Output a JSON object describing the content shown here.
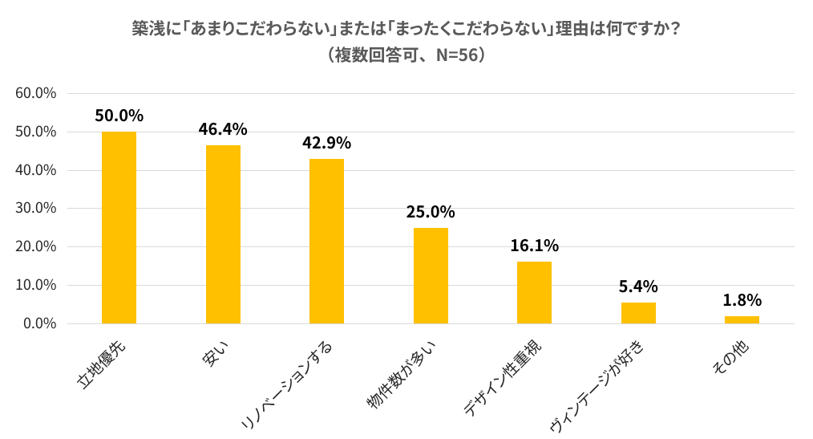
{
  "chart_data": {
    "type": "bar",
    "title": "築浅に「あまりこだわらない」または「まったくこだわらない」理由は何ですか？",
    "subtitle": "（複数回答可、N=56）",
    "categories": [
      "立地優先",
      "安い",
      "リノベーションする",
      "物件数が多い",
      "デザイン性重視",
      "ヴィンテージが好き",
      "その他"
    ],
    "values": [
      50.0,
      46.4,
      42.9,
      25.0,
      16.1,
      5.4,
      1.8
    ],
    "value_labels": [
      "50.0%",
      "46.4%",
      "42.9%",
      "25.0%",
      "16.1%",
      "5.4%",
      "1.8%"
    ],
    "y_axis": {
      "tick_labels": [
        "0.0%",
        "10.0%",
        "20.0%",
        "30.0%",
        "40.0%",
        "50.0%",
        "60.0%"
      ],
      "tick_values": [
        0,
        10,
        20,
        30,
        40,
        50,
        60
      ],
      "min": 0,
      "max": 60
    },
    "xlabel": "",
    "ylabel": "",
    "grid": true,
    "legend": false,
    "colors": {
      "bar": "#ffc000",
      "gridline": "#d9d9d9",
      "title": "#595959",
      "axis_text": "#262626",
      "value_label_text": "#000000",
      "background": "#ffffff"
    }
  }
}
